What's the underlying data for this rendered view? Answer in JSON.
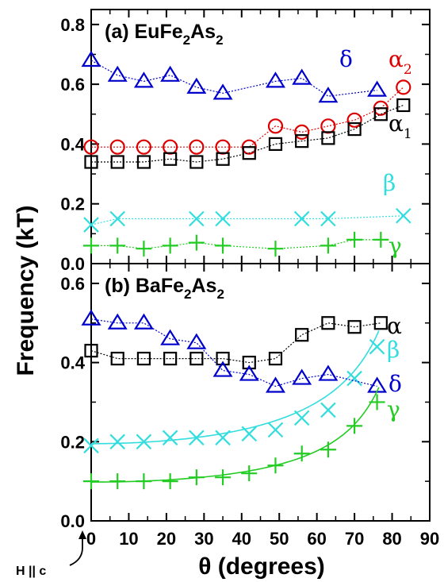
{
  "chart_data": [
    {
      "type": "scatter",
      "title": "(a) EuFe2As2",
      "title_parts": {
        "prefix": "(a) ",
        "base": "EuFe",
        "sub1": "2",
        "mid": "As",
        "sub2": "2"
      },
      "ylabel": "Frequency (kT)",
      "xlim": [
        0,
        90
      ],
      "ylim": [
        0,
        0.85
      ],
      "yticks": [
        "0.0",
        "0.2",
        "0.4",
        "0.6",
        "0.8"
      ],
      "grid": false,
      "series": [
        {
          "name": "δ",
          "label": {
            "base": "δ",
            "sub": ""
          },
          "color": "#0000cc",
          "marker": "triangle",
          "x": [
            0,
            7,
            14,
            21,
            28,
            35,
            49,
            56,
            63,
            76
          ],
          "y": [
            0.68,
            0.63,
            0.61,
            0.63,
            0.59,
            0.57,
            0.61,
            0.62,
            0.56,
            0.58
          ]
        },
        {
          "name": "α2",
          "label": {
            "base": "α",
            "sub": "2"
          },
          "color": "#dd0000",
          "marker": "circle",
          "x": [
            0,
            7,
            14,
            21,
            28,
            35,
            42,
            49,
            56,
            63,
            70,
            77,
            83
          ],
          "y": [
            0.39,
            0.39,
            0.39,
            0.39,
            0.39,
            0.39,
            0.39,
            0.46,
            0.44,
            0.46,
            0.48,
            0.52,
            0.59
          ]
        },
        {
          "name": "α1",
          "label": {
            "base": "α",
            "sub": "1"
          },
          "color": "#000000",
          "marker": "square",
          "x": [
            0,
            7,
            14,
            21,
            28,
            35,
            42,
            49,
            56,
            63,
            70,
            77,
            83
          ],
          "y": [
            0.34,
            0.34,
            0.34,
            0.35,
            0.34,
            0.35,
            0.37,
            0.4,
            0.41,
            0.42,
            0.45,
            0.5,
            0.53
          ]
        },
        {
          "name": "β",
          "label": {
            "base": "β",
            "sub": ""
          },
          "color": "#33dddd",
          "marker": "x",
          "x": [
            0,
            7,
            28,
            35,
            56,
            63,
            83
          ],
          "y": [
            0.13,
            0.15,
            0.15,
            0.15,
            0.15,
            0.15,
            0.16
          ]
        },
        {
          "name": "γ",
          "label": {
            "base": "γ",
            "sub": ""
          },
          "color": "#22cc22",
          "marker": "plus",
          "x": [
            0,
            7,
            14,
            21,
            28,
            35,
            49,
            63,
            70,
            77
          ],
          "y": [
            0.06,
            0.06,
            0.05,
            0.06,
            0.07,
            0.06,
            0.05,
            0.06,
            0.08,
            0.08
          ]
        }
      ]
    },
    {
      "type": "scatter",
      "title": "(b) BaFe2As2",
      "title_parts": {
        "prefix": "(b)  ",
        "base": "BaFe",
        "sub1": "2",
        "mid": "As",
        "sub2": "2"
      },
      "xlabel": "θ (degrees)",
      "ylabel": "Frequency (kT)",
      "xlim": [
        0,
        90
      ],
      "ylim": [
        0,
        0.65
      ],
      "xticks": [
        "0",
        "10",
        "20",
        "30",
        "40",
        "50",
        "60",
        "70",
        "80",
        "90"
      ],
      "yticks": [
        "0.0",
        "0.2",
        "0.4",
        "0.6"
      ],
      "grid": false,
      "annotation": "H || c",
      "series": [
        {
          "name": "α",
          "label": {
            "base": "α",
            "sub": ""
          },
          "color": "#000000",
          "marker": "square",
          "x": [
            0,
            7,
            14,
            21,
            28,
            35,
            42,
            49,
            56,
            63,
            70,
            77
          ],
          "y": [
            0.43,
            0.41,
            0.41,
            0.41,
            0.41,
            0.41,
            0.4,
            0.41,
            0.47,
            0.5,
            0.49,
            0.5
          ]
        },
        {
          "name": "β",
          "label": {
            "base": "β",
            "sub": ""
          },
          "color": "#33dddd",
          "marker": "x",
          "x": [
            0,
            7,
            14,
            21,
            28,
            35,
            42,
            49,
            56,
            63,
            70,
            76
          ],
          "y": [
            0.19,
            0.2,
            0.2,
            0.21,
            0.21,
            0.21,
            0.22,
            0.23,
            0.26,
            0.28,
            0.36,
            0.44
          ]
        },
        {
          "name": "δ",
          "label": {
            "base": "δ",
            "sub": ""
          },
          "color": "#0000cc",
          "marker": "triangle",
          "x": [
            0,
            7,
            14,
            21,
            28,
            35,
            42,
            49,
            56,
            63,
            76
          ],
          "y": [
            0.51,
            0.5,
            0.5,
            0.46,
            0.45,
            0.38,
            0.37,
            0.34,
            0.36,
            0.37,
            0.34
          ]
        },
        {
          "name": "γ",
          "label": {
            "base": "γ",
            "sub": ""
          },
          "color": "#22cc22",
          "marker": "plus",
          "x": [
            0,
            7,
            14,
            21,
            28,
            35,
            42,
            49,
            56,
            63,
            70,
            76
          ],
          "y": [
            0.1,
            0.1,
            0.1,
            0.1,
            0.11,
            0.11,
            0.12,
            0.14,
            0.17,
            0.18,
            0.24,
            0.3
          ]
        }
      ]
    }
  ]
}
